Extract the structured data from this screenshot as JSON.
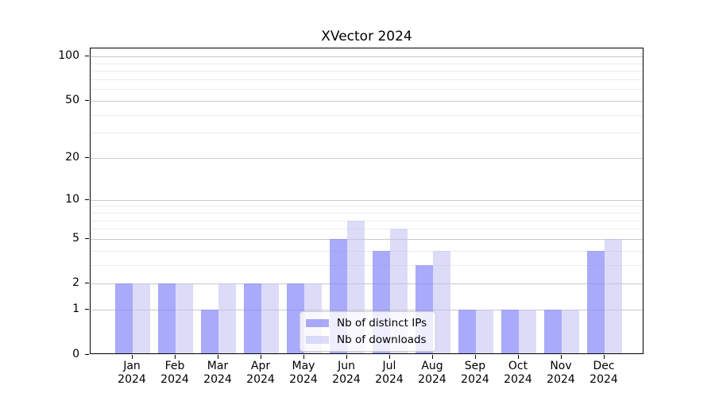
{
  "title": "XVector 2024",
  "colors": {
    "ips_bar": "rgba(134,134,248,0.7)",
    "downloads_bar": "rgba(191,191,242,0.55)",
    "grid_major": "#c9c9c9",
    "grid_minor": "#ececec",
    "axis": "#000000",
    "legend_border": "#cccccc",
    "legend_bg": "rgba(255,255,255,0.8)"
  },
  "chart_data": {
    "type": "bar",
    "title": "XVector 2024",
    "categories": [
      "Jan 2024",
      "Feb 2024",
      "Mar 2024",
      "Apr 2024",
      "May 2024",
      "Jun 2024",
      "Jul 2024",
      "Aug 2024",
      "Sep 2024",
      "Oct 2024",
      "Nov 2024",
      "Dec 2024"
    ],
    "series": [
      {
        "name": "Nb of distinct IPs",
        "color": "rgba(134,134,248,0.7)",
        "values": [
          2,
          2,
          1,
          2,
          2,
          5,
          4,
          3,
          1,
          1,
          1,
          4
        ]
      },
      {
        "name": "Nb of downloads",
        "color": "rgba(191,191,242,0.55)",
        "values": [
          2,
          2,
          2,
          2,
          2,
          7,
          6,
          4,
          1,
          1,
          1,
          5
        ]
      }
    ],
    "xlabel": "",
    "ylabel": "",
    "yscale": "log(value+1)",
    "ylim": [
      0,
      118
    ],
    "y_major_ticks": [
      0,
      1,
      2,
      5,
      10,
      20,
      50,
      100
    ],
    "y_minor_ticks": [
      3,
      4,
      6,
      7,
      8,
      9,
      30,
      40,
      60,
      70,
      80,
      90
    ],
    "grid": "on",
    "legend_position": "lower center"
  },
  "legend": {
    "items": [
      {
        "label": "Nb of distinct IPs"
      },
      {
        "label": "Nb of downloads"
      }
    ]
  }
}
